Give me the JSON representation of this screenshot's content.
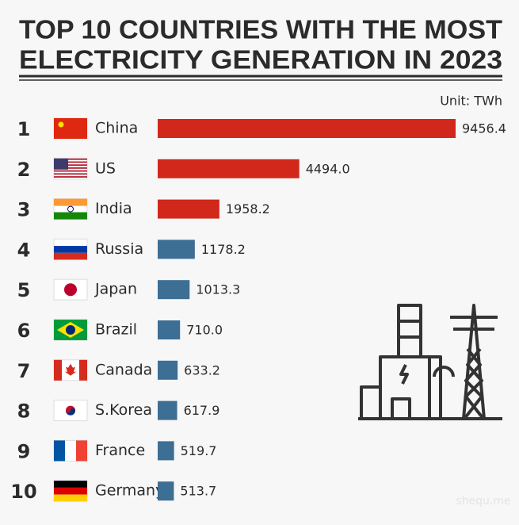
{
  "chart_data": {
    "type": "bar",
    "orientation": "horizontal",
    "title": [
      "TOP 10 COUNTRIES WITH THE MOST",
      "ELECTRICITY GENERATION IN 2023"
    ],
    "unit": "Unit: TWh",
    "ranks": [
      1,
      2,
      3,
      4,
      5,
      6,
      7,
      8,
      9,
      10
    ],
    "categories": [
      "China",
      "US",
      "India",
      "Russia",
      "Japan",
      "Brazil",
      "Canada",
      "S.Korea",
      "France",
      "Germany"
    ],
    "values": [
      9456.4,
      4494.0,
      1958.2,
      1178.2,
      1013.3,
      710.0,
      633.2,
      617.9,
      519.7,
      513.7
    ],
    "value_labels": [
      "9456.4",
      "4494.0",
      "1958.2",
      "1178.2",
      "1013.3",
      "710.0",
      "633.2",
      "617.9",
      "519.7",
      "513.7"
    ],
    "colors": [
      "#d2281c",
      "#d2281c",
      "#d2281c",
      "#3d6e94",
      "#3d6e94",
      "#3d6e94",
      "#3d6e94",
      "#3d6e94",
      "#3d6e94",
      "#3d6e94"
    ],
    "watermark": "shequ.me"
  }
}
